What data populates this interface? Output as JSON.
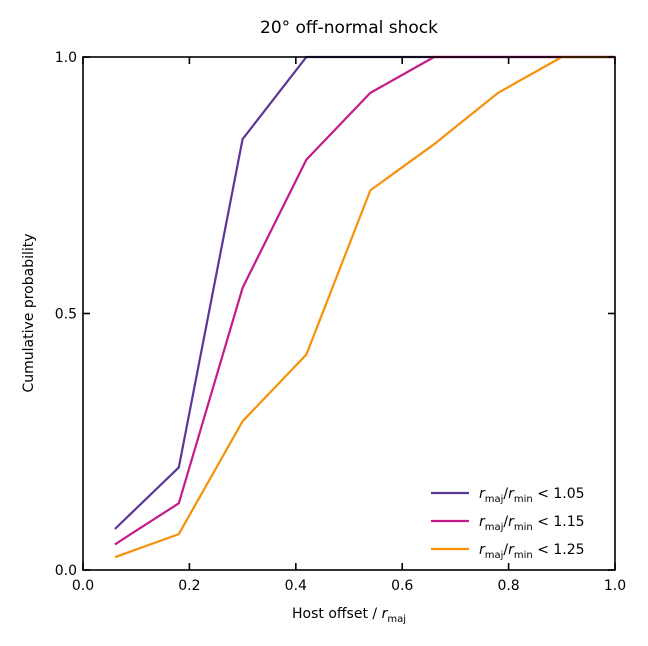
{
  "chart_data": {
    "type": "line",
    "title": "20° off-normal shock",
    "xlabel": {
      "main": "Host offset / ",
      "italic": "r",
      "sub": "maj"
    },
    "ylabel": "Cumulative probability",
    "xlim": [
      0.0,
      1.0
    ],
    "ylim": [
      0.0,
      1.0
    ],
    "xticks": [
      {
        "value": 0.0,
        "label": "0.0"
      },
      {
        "value": 0.2,
        "label": "0.2"
      },
      {
        "value": 0.4,
        "label": "0.4"
      },
      {
        "value": 0.6,
        "label": "0.6"
      },
      {
        "value": 0.8,
        "label": "0.8"
      },
      {
        "value": 1.0,
        "label": "1.0"
      }
    ],
    "yticks": [
      {
        "value": 0.0,
        "label": "0.0"
      },
      {
        "value": 0.5,
        "label": "0.5"
      },
      {
        "value": 1.0,
        "label": "1.0"
      }
    ],
    "grid": false,
    "legend_position": "lower-right",
    "series": [
      {
        "name": "r_maj/r_min < 1.05",
        "legend": {
          "r1": "r",
          "sub1": "maj",
          "slash": "/",
          "r2": "r",
          "sub2": "min",
          "rest": " < 1.05"
        },
        "color": "#5c3696",
        "x": [
          0.06,
          0.18,
          0.3,
          0.42,
          0.54,
          0.66,
          0.78,
          0.9,
          1.0
        ],
        "y": [
          0.08,
          0.2,
          0.84,
          1.0,
          1.0,
          1.0,
          1.0,
          1.0,
          1.0
        ]
      },
      {
        "name": "r_maj/r_min < 1.15",
        "legend": {
          "r1": "r",
          "sub1": "maj",
          "slash": "/",
          "r2": "r",
          "sub2": "min",
          "rest": " < 1.15"
        },
        "color": "#c51b8a",
        "x": [
          0.06,
          0.18,
          0.3,
          0.42,
          0.54,
          0.66,
          0.78,
          0.9,
          1.0
        ],
        "y": [
          0.05,
          0.13,
          0.55,
          0.8,
          0.93,
          1.0,
          1.0,
          1.0,
          1.0
        ]
      },
      {
        "name": "r_maj/r_min < 1.25",
        "legend": {
          "r1": "r",
          "sub1": "maj",
          "slash": "/",
          "r2": "r",
          "sub2": "min",
          "rest": " < 1.25"
        },
        "color": "#f7900a",
        "x": [
          0.06,
          0.18,
          0.3,
          0.42,
          0.54,
          0.66,
          0.78,
          0.9,
          1.0
        ],
        "y": [
          0.025,
          0.07,
          0.29,
          0.42,
          0.74,
          0.83,
          0.93,
          1.0,
          1.0
        ]
      }
    ]
  }
}
